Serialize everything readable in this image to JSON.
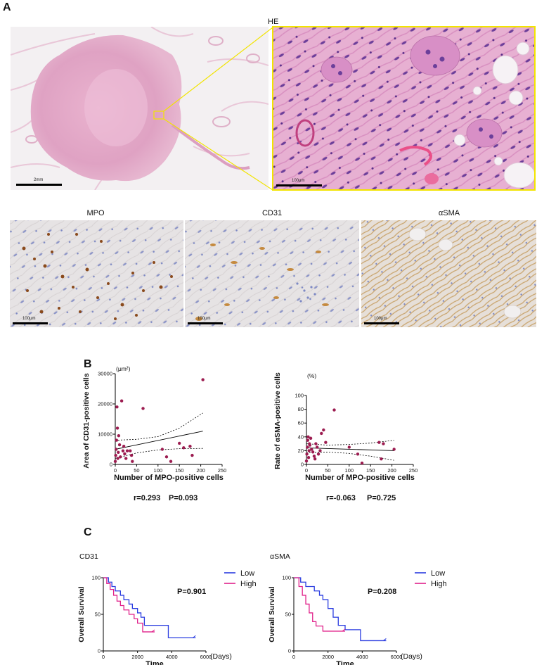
{
  "panel_a": {
    "letter": "A",
    "he_label": "HE",
    "he_overview_scale": "2mm",
    "he_zoom_scale": "100μm",
    "ihc_titles": [
      "MPO",
      "CD31",
      "αSMA"
    ],
    "ihc_scale": "100μm",
    "colors": {
      "tissue": "#e3a8c6",
      "zoom_border": "#f2e400",
      "dab": "#a05a22",
      "nuclei": "#6f7fc4"
    }
  },
  "panel_b": {
    "letter": "B"
  },
  "panel_c": {
    "letter": "C"
  },
  "chart_data": [
    {
      "type": "scatter",
      "panel": "B-left",
      "xlabel": "Number of MPO-positive cells",
      "ylabel": "Area of CD31-positive cells",
      "unit_label": "(μm²)",
      "xlim": [
        0,
        250
      ],
      "ylim": [
        0,
        30000
      ],
      "xticks": [
        0,
        50,
        100,
        150,
        200,
        250
      ],
      "yticks": [
        0,
        10000,
        20000,
        30000
      ],
      "points": [
        [
          0,
          1000
        ],
        [
          1,
          3000
        ],
        [
          2,
          5000
        ],
        [
          3,
          8000
        ],
        [
          4,
          19000
        ],
        [
          5,
          12000
        ],
        [
          6,
          2000
        ],
        [
          7,
          4000
        ],
        [
          8,
          9500
        ],
        [
          10,
          6500
        ],
        [
          12,
          2500
        ],
        [
          15,
          21000
        ],
        [
          18,
          4500
        ],
        [
          20,
          6000
        ],
        [
          22,
          3500
        ],
        [
          25,
          2000
        ],
        [
          28,
          4500
        ],
        [
          35,
          4500
        ],
        [
          38,
          3000
        ],
        [
          40,
          1000
        ],
        [
          65,
          18500
        ],
        [
          110,
          5000
        ],
        [
          120,
          2500
        ],
        [
          130,
          1000
        ],
        [
          150,
          7000
        ],
        [
          160,
          5500
        ],
        [
          175,
          6000
        ],
        [
          180,
          3000
        ],
        [
          205,
          28000
        ]
      ],
      "regression": {
        "x": [
          0,
          205
        ],
        "y": [
          5000,
          11000
        ]
      },
      "ci_upper": {
        "x": [
          0,
          50,
          100,
          150,
          205
        ],
        "y": [
          8000,
          8300,
          9200,
          12000,
          17000
        ]
      },
      "ci_lower": {
        "x": [
          0,
          50,
          100,
          150,
          205
        ],
        "y": [
          2000,
          3800,
          4800,
          5200,
          5300
        ]
      },
      "stats": {
        "r": "r=0.293",
        "p": "P=0.093"
      }
    },
    {
      "type": "scatter",
      "panel": "B-right",
      "xlabel": "Number of MPO-positive cells",
      "ylabel": "Rate of αSMA-positive cells",
      "unit_label": "(%)",
      "xlim": [
        0,
        250
      ],
      "ylim": [
        0,
        100
      ],
      "xticks": [
        0,
        50,
        100,
        150,
        200,
        250
      ],
      "yticks": [
        0,
        20,
        40,
        60,
        80,
        100
      ],
      "points": [
        [
          0,
          5
        ],
        [
          1,
          15
        ],
        [
          2,
          25
        ],
        [
          3,
          35
        ],
        [
          4,
          40
        ],
        [
          5,
          10
        ],
        [
          6,
          20
        ],
        [
          7,
          30
        ],
        [
          8,
          28
        ],
        [
          10,
          38
        ],
        [
          12,
          22
        ],
        [
          15,
          18
        ],
        [
          18,
          12
        ],
        [
          20,
          8
        ],
        [
          22,
          30
        ],
        [
          25,
          25
        ],
        [
          28,
          15
        ],
        [
          32,
          20
        ],
        [
          35,
          45
        ],
        [
          40,
          50
        ],
        [
          45,
          32
        ],
        [
          65,
          79
        ],
        [
          100,
          25
        ],
        [
          120,
          15
        ],
        [
          130,
          2
        ],
        [
          170,
          32
        ],
        [
          175,
          8
        ],
        [
          180,
          30
        ],
        [
          205,
          22
        ]
      ],
      "regression": {
        "x": [
          0,
          205
        ],
        "y": [
          24,
          20
        ]
      },
      "ci_upper": {
        "x": [
          0,
          50,
          100,
          150,
          205
        ],
        "y": [
          30,
          28,
          29,
          31,
          35
        ]
      },
      "ci_lower": {
        "x": [
          0,
          50,
          100,
          150,
          205
        ],
        "y": [
          17,
          18,
          16,
          12,
          6
        ]
      },
      "stats": {
        "r": "r=-0.063",
        "p": "P=0.725"
      }
    },
    {
      "type": "line",
      "panel": "C-left",
      "title": "CD31",
      "xlabel": "Time",
      "xunit": "(Days)",
      "ylabel": "Overall Survival",
      "xlim": [
        0,
        6000
      ],
      "ylim": [
        0,
        100
      ],
      "xticks": [
        0,
        2000,
        4000,
        6000
      ],
      "yticks": [
        0,
        50,
        100
      ],
      "pvalue": "P=0.901",
      "legend_position": "top-right",
      "series": [
        {
          "name": "Low",
          "color": "#2a3ce0",
          "steps": [
            [
              0,
              100
            ],
            [
              300,
              100
            ],
            [
              300,
              94
            ],
            [
              500,
              94
            ],
            [
              500,
              88
            ],
            [
              700,
              88
            ],
            [
              700,
              82
            ],
            [
              1000,
              82
            ],
            [
              1000,
              76
            ],
            [
              1200,
              76
            ],
            [
              1200,
              70
            ],
            [
              1500,
              70
            ],
            [
              1500,
              64
            ],
            [
              1700,
              64
            ],
            [
              1700,
              58
            ],
            [
              2000,
              58
            ],
            [
              2000,
              52
            ],
            [
              2200,
              52
            ],
            [
              2200,
              46
            ],
            [
              2400,
              46
            ],
            [
              2400,
              35
            ],
            [
              3800,
              35
            ],
            [
              3800,
              18
            ],
            [
              5400,
              18
            ]
          ]
        },
        {
          "name": "High",
          "color": "#e0208a",
          "steps": [
            [
              0,
              100
            ],
            [
              200,
              100
            ],
            [
              200,
              92
            ],
            [
              400,
              92
            ],
            [
              400,
              84
            ],
            [
              600,
              84
            ],
            [
              600,
              76
            ],
            [
              800,
              76
            ],
            [
              800,
              68
            ],
            [
              1000,
              68
            ],
            [
              1000,
              62
            ],
            [
              1200,
              62
            ],
            [
              1200,
              56
            ],
            [
              1500,
              56
            ],
            [
              1500,
              50
            ],
            [
              1800,
              50
            ],
            [
              1800,
              44
            ],
            [
              2000,
              44
            ],
            [
              2000,
              38
            ],
            [
              2300,
              38
            ],
            [
              2300,
              26
            ],
            [
              3000,
              26
            ]
          ]
        }
      ]
    },
    {
      "type": "line",
      "panel": "C-right",
      "title": "αSMA",
      "xlabel": "Time",
      "xunit": "(Days)",
      "ylabel": "Overall Survival",
      "xlim": [
        0,
        6000
      ],
      "ylim": [
        0,
        100
      ],
      "xticks": [
        0,
        2000,
        4000,
        6000
      ],
      "yticks": [
        0,
        50,
        100
      ],
      "pvalue": "P=0.208",
      "legend_position": "top-right",
      "series": [
        {
          "name": "Low",
          "color": "#2a3ce0",
          "steps": [
            [
              0,
              100
            ],
            [
              400,
              100
            ],
            [
              400,
              94
            ],
            [
              700,
              94
            ],
            [
              700,
              88
            ],
            [
              1200,
              88
            ],
            [
              1200,
              82
            ],
            [
              1500,
              82
            ],
            [
              1500,
              76
            ],
            [
              1700,
              76
            ],
            [
              1700,
              70
            ],
            [
              2000,
              70
            ],
            [
              2000,
              58
            ],
            [
              2300,
              58
            ],
            [
              2300,
              46
            ],
            [
              2600,
              46
            ],
            [
              2600,
              35
            ],
            [
              3000,
              35
            ],
            [
              3000,
              29
            ],
            [
              3900,
              29
            ],
            [
              3900,
              14
            ],
            [
              5400,
              14
            ]
          ]
        },
        {
          "name": "High",
          "color": "#e0208a",
          "steps": [
            [
              0,
              100
            ],
            [
              300,
              100
            ],
            [
              300,
              88
            ],
            [
              500,
              88
            ],
            [
              500,
              76
            ],
            [
              700,
              76
            ],
            [
              700,
              64
            ],
            [
              900,
              64
            ],
            [
              900,
              52
            ],
            [
              1100,
              52
            ],
            [
              1100,
              40
            ],
            [
              1300,
              40
            ],
            [
              1300,
              34
            ],
            [
              1700,
              34
            ],
            [
              1700,
              27
            ],
            [
              3000,
              27
            ]
          ]
        }
      ]
    }
  ]
}
